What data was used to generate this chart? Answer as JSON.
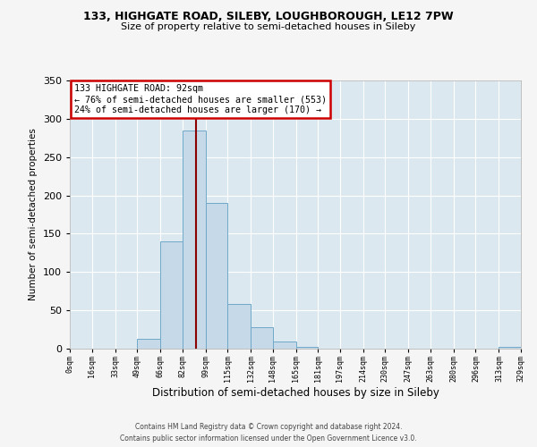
{
  "title_line1": "133, HIGHGATE ROAD, SILEBY, LOUGHBOROUGH, LE12 7PW",
  "title_line2": "Size of property relative to semi-detached houses in Sileby",
  "xlabel": "Distribution of semi-detached houses by size in Sileby",
  "ylabel": "Number of semi-detached properties",
  "bin_edges": [
    0,
    16,
    33,
    49,
    66,
    82,
    99,
    115,
    132,
    148,
    165,
    181,
    197,
    214,
    230,
    247,
    263,
    280,
    296,
    313,
    329
  ],
  "bar_heights": [
    0,
    0,
    0,
    13,
    140,
    285,
    190,
    58,
    28,
    9,
    2,
    0,
    0,
    0,
    0,
    0,
    0,
    0,
    0,
    2
  ],
  "bar_color": "#c6d9e8",
  "bar_edgecolor": "#6fa8c8",
  "property_value": 92,
  "vline_color": "#8b0000",
  "annotation_title": "133 HIGHGATE ROAD: 92sqm",
  "annotation_line2": "← 76% of semi-detached houses are smaller (553)",
  "annotation_line3": "24% of semi-detached houses are larger (170) →",
  "annotation_box_edgecolor": "#cc0000",
  "xlim": [
    0,
    329
  ],
  "ylim": [
    0,
    350
  ],
  "yticks": [
    0,
    50,
    100,
    150,
    200,
    250,
    300,
    350
  ],
  "xtick_labels": [
    "0sqm",
    "16sqm",
    "33sqm",
    "49sqm",
    "66sqm",
    "82sqm",
    "99sqm",
    "115sqm",
    "132sqm",
    "148sqm",
    "165sqm",
    "181sqm",
    "197sqm",
    "214sqm",
    "230sqm",
    "247sqm",
    "263sqm",
    "280sqm",
    "296sqm",
    "313sqm",
    "329sqm"
  ],
  "background_color": "#dce8f0",
  "fig_background_color": "#f5f5f5",
  "grid_color": "#ffffff",
  "footer_line1": "Contains HM Land Registry data © Crown copyright and database right 2024.",
  "footer_line2": "Contains public sector information licensed under the Open Government Licence v3.0."
}
